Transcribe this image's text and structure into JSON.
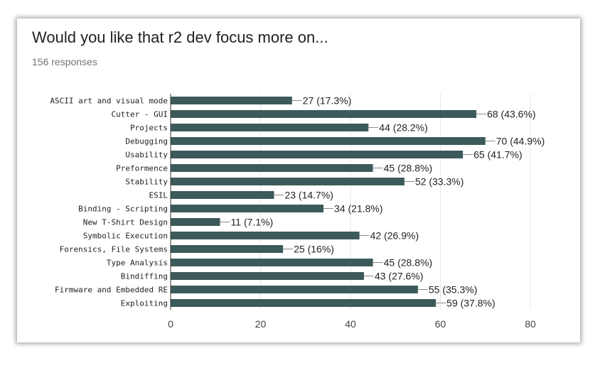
{
  "card": {
    "title": "Would you like that r2 dev focus more on...",
    "responses": "156 responses"
  },
  "colors": {
    "bar": "#3d5a5a",
    "grid": "#e6e6e6",
    "axis": "#333333"
  },
  "chart_data": {
    "type": "bar",
    "orientation": "horizontal",
    "categories": [
      "ASCII art and visual mode",
      "Cutter - GUI",
      "Projects",
      "Debugging",
      "Usability",
      "Preformence",
      "Stability",
      "ESIL",
      "Binding - Scripting",
      "New T-Shirt Design",
      "Symbolic Execution",
      "Forensics, File Systems",
      "Type Analysis",
      "Bindiffing",
      "Firmware and Embedded RE",
      "Exploiting"
    ],
    "values": [
      27,
      68,
      44,
      70,
      65,
      45,
      52,
      23,
      34,
      11,
      42,
      25,
      45,
      43,
      55,
      59
    ],
    "value_labels": [
      "27 (17.3%)",
      "68 (43.6%)",
      "44 (28.2%)",
      "70 (44.9%)",
      "65 (41.7%)",
      "45 (28.8%)",
      "52 (33.3%)",
      "23 (14.7%)",
      "34 (21.8%)",
      "11 (7.1%)",
      "42 (26.9%)",
      "25 (16%)",
      "45 (28.8%)",
      "43 (27.6%)",
      "55 (35.3%)",
      "59 (37.8%)"
    ],
    "xlim": [
      0,
      80
    ],
    "xticks": [
      0,
      20,
      40,
      60,
      80
    ],
    "grid": true
  }
}
